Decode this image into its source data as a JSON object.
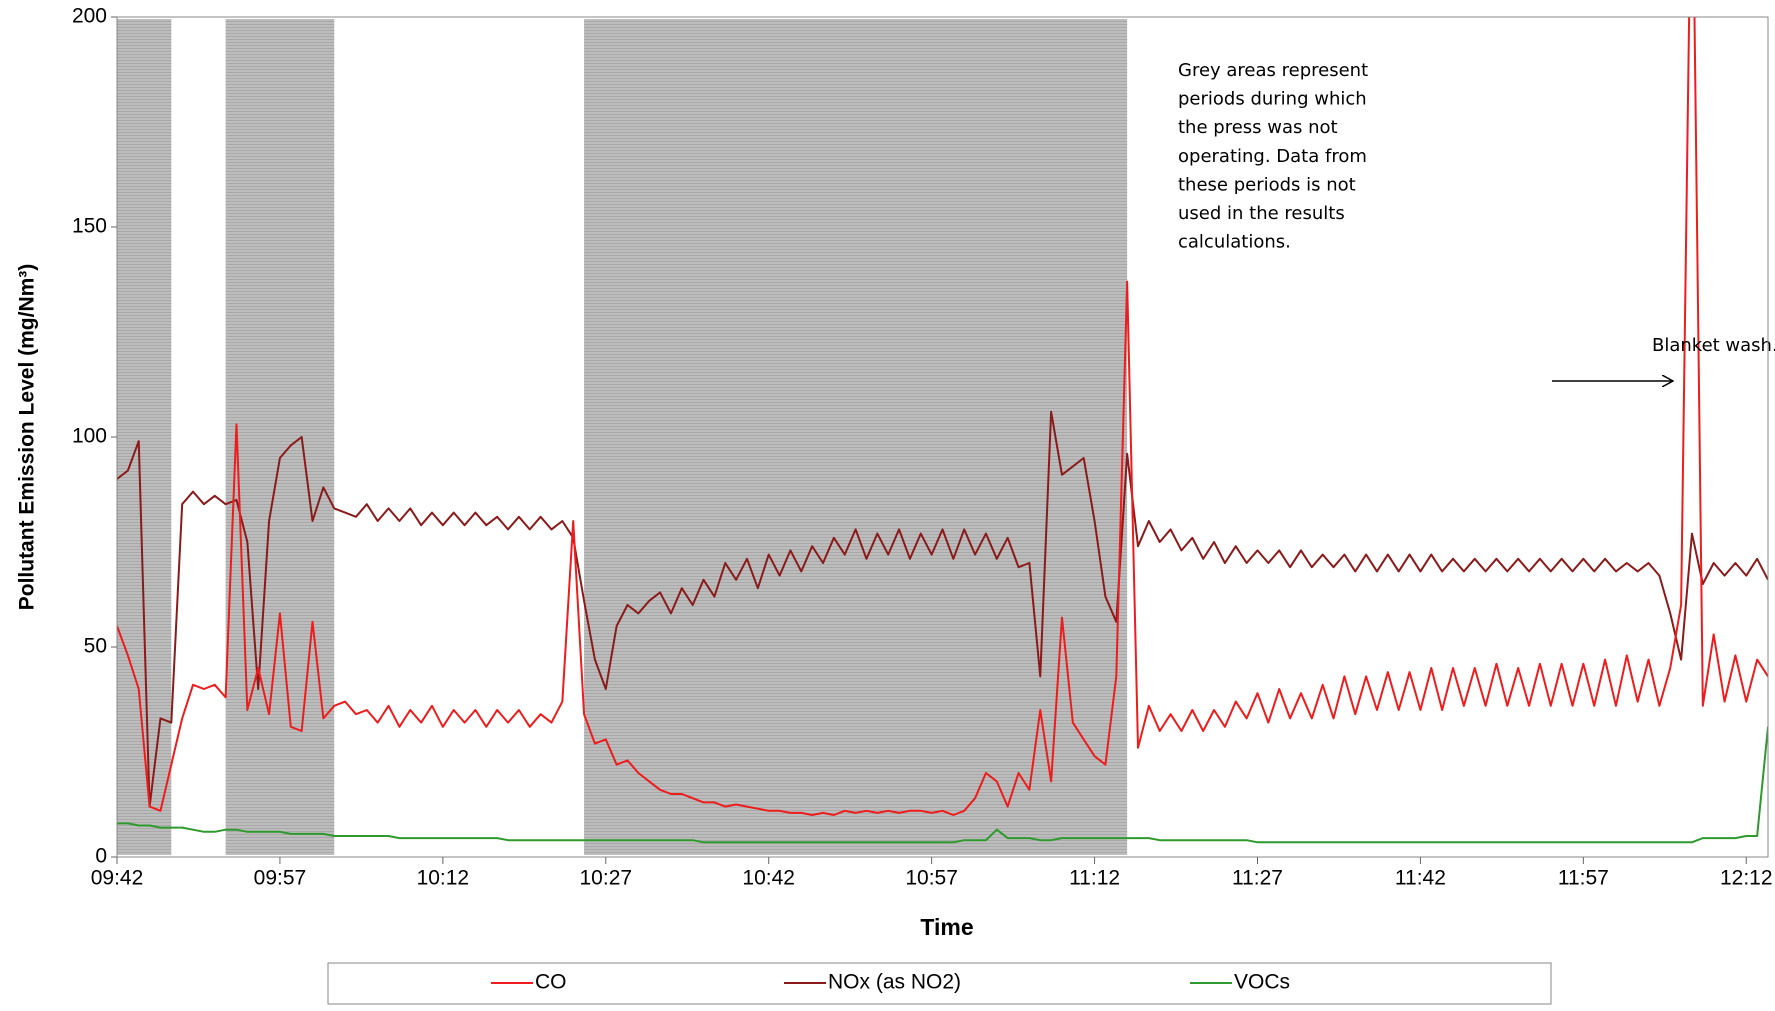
{
  "chart_data": {
    "type": "line",
    "x_label": "Time",
    "y_label": "Pollutant Emission Level (mg/Nm³)",
    "x": [
      "09:42",
      "09:43",
      "09:44",
      "09:45",
      "09:46",
      "09:47",
      "09:48",
      "09:49",
      "09:50",
      "09:51",
      "09:52",
      "09:53",
      "09:54",
      "09:55",
      "09:56",
      "09:57",
      "09:58",
      "09:59",
      "10:00",
      "10:01",
      "10:02",
      "10:03",
      "10:04",
      "10:05",
      "10:06",
      "10:07",
      "10:08",
      "10:09",
      "10:10",
      "10:11",
      "10:12",
      "10:13",
      "10:14",
      "10:15",
      "10:16",
      "10:17",
      "10:18",
      "10:19",
      "10:20",
      "10:21",
      "10:22",
      "10:23",
      "10:24",
      "10:25",
      "10:26",
      "10:27",
      "10:28",
      "10:29",
      "10:30",
      "10:31",
      "10:32",
      "10:33",
      "10:34",
      "10:35",
      "10:36",
      "10:37",
      "10:38",
      "10:39",
      "10:40",
      "10:41",
      "10:42",
      "10:43",
      "10:44",
      "10:45",
      "10:46",
      "10:47",
      "10:48",
      "10:49",
      "10:50",
      "10:51",
      "10:52",
      "10:53",
      "10:54",
      "10:55",
      "10:56",
      "10:57",
      "10:58",
      "10:59",
      "11:00",
      "11:01",
      "11:02",
      "11:03",
      "11:04",
      "11:05",
      "11:06",
      "11:07",
      "11:08",
      "11:09",
      "11:10",
      "11:11",
      "11:12",
      "11:13",
      "11:14",
      "11:15",
      "11:16",
      "11:17",
      "11:18",
      "11:19",
      "11:20",
      "11:21",
      "11:22",
      "11:23",
      "11:24",
      "11:25",
      "11:26",
      "11:27",
      "11:28",
      "11:29",
      "11:30",
      "11:31",
      "11:32",
      "11:33",
      "11:34",
      "11:35",
      "11:36",
      "11:37",
      "11:38",
      "11:39",
      "11:40",
      "11:41",
      "11:42",
      "11:43",
      "11:44",
      "11:45",
      "11:46",
      "11:47",
      "11:48",
      "11:49",
      "11:50",
      "11:51",
      "11:52",
      "11:53",
      "11:54",
      "11:55",
      "11:56",
      "11:57",
      "11:58",
      "11:59",
      "12:00",
      "12:01",
      "12:02",
      "12:03",
      "12:04",
      "12:05",
      "12:06",
      "12:07",
      "12:08",
      "12:09",
      "12:10",
      "12:11",
      "12:12",
      "12:13",
      "12:14"
    ],
    "series": [
      {
        "name": "CO",
        "color": "#ee1c1c",
        "values": [
          55,
          48,
          40,
          12,
          11,
          22,
          33,
          41,
          40,
          41,
          38,
          103,
          35,
          45,
          34,
          58,
          31,
          30,
          56,
          33,
          36,
          37,
          34,
          35,
          32,
          36,
          31,
          35,
          32,
          36,
          31,
          35,
          32,
          35,
          31,
          35,
          32,
          35,
          31,
          34,
          32,
          37,
          80,
          34,
          27,
          28,
          22,
          23,
          20,
          18,
          16,
          15,
          15,
          14,
          13,
          13,
          12,
          12.5,
          12,
          11.5,
          11,
          11,
          10.5,
          10.5,
          10,
          10.5,
          10,
          11,
          10.5,
          11,
          10.5,
          11,
          10.5,
          11,
          11,
          10.5,
          11,
          10,
          11,
          14,
          20,
          18,
          12,
          20,
          16,
          35,
          18,
          57,
          32,
          28,
          24,
          22,
          43,
          137,
          26,
          36,
          30,
          34,
          30,
          35,
          30,
          35,
          31,
          37,
          33,
          39,
          32,
          40,
          33,
          39,
          33,
          41,
          33,
          43,
          34,
          43,
          35,
          44,
          35,
          44,
          35,
          45,
          35,
          45,
          36,
          45,
          36,
          46,
          36,
          45,
          36,
          46,
          36,
          46,
          36,
          46,
          36,
          47,
          36,
          48,
          37,
          47,
          36,
          45,
          60,
          250,
          36,
          53,
          37,
          48,
          37,
          47,
          43
        ]
      },
      {
        "name": "NOx (as NO2)",
        "color": "#8b1a1a",
        "values": [
          90,
          92,
          99,
          12,
          33,
          32,
          84,
          87,
          84,
          86,
          84,
          85,
          75,
          40,
          80,
          95,
          98,
          100,
          80,
          88,
          83,
          82,
          81,
          84,
          80,
          83,
          80,
          83,
          79,
          82,
          79,
          82,
          79,
          82,
          79,
          81,
          78,
          81,
          78,
          81,
          78,
          80,
          76,
          61,
          47,
          40,
          55,
          60,
          58,
          61,
          63,
          58,
          64,
          60,
          66,
          62,
          70,
          66,
          71,
          64,
          72,
          67,
          73,
          68,
          74,
          70,
          76,
          72,
          78,
          71,
          77,
          72,
          78,
          71,
          77,
          72,
          78,
          71,
          78,
          72,
          77,
          71,
          76,
          69,
          70,
          43,
          106,
          91,
          93,
          95,
          80,
          62,
          56,
          96,
          74,
          80,
          75,
          78,
          73,
          76,
          71,
          75,
          70,
          74,
          70,
          73,
          70,
          73,
          69,
          73,
          69,
          72,
          69,
          72,
          68,
          72,
          68,
          72,
          68,
          72,
          68,
          72,
          68,
          71,
          68,
          71,
          68,
          71,
          68,
          71,
          68,
          71,
          68,
          71,
          68,
          71,
          68,
          71,
          68,
          70,
          68,
          70,
          67,
          58,
          47,
          77,
          65,
          70,
          67,
          70,
          67,
          71,
          66
        ]
      },
      {
        "name": "VOCs",
        "color": "#2e9a2e",
        "values": [
          8,
          8,
          7.5,
          7.5,
          7,
          7,
          7,
          6.5,
          6,
          6,
          6.5,
          6.5,
          6,
          6,
          6,
          6,
          5.5,
          5.5,
          5.5,
          5.5,
          5,
          5,
          5,
          5,
          5,
          5,
          4.5,
          4.5,
          4.5,
          4.5,
          4.5,
          4.5,
          4.5,
          4.5,
          4.5,
          4.5,
          4,
          4,
          4,
          4,
          4,
          4,
          4,
          4,
          4,
          4,
          4,
          4,
          4,
          4,
          4,
          4,
          4,
          4,
          3.5,
          3.5,
          3.5,
          3.5,
          3.5,
          3.5,
          3.5,
          3.5,
          3.5,
          3.5,
          3.5,
          3.5,
          3.5,
          3.5,
          3.5,
          3.5,
          3.5,
          3.5,
          3.5,
          3.5,
          3.5,
          3.5,
          3.5,
          3.5,
          4,
          4,
          4,
          6.5,
          4.5,
          4.5,
          4.5,
          4,
          4,
          4.5,
          4.5,
          4.5,
          4.5,
          4.5,
          4.5,
          4.5,
          4.5,
          4.5,
          4,
          4,
          4,
          4,
          4,
          4,
          4,
          4,
          4,
          3.5,
          3.5,
          3.5,
          3.5,
          3.5,
          3.5,
          3.5,
          3.5,
          3.5,
          3.5,
          3.5,
          3.5,
          3.5,
          3.5,
          3.5,
          3.5,
          3.5,
          3.5,
          3.5,
          3.5,
          3.5,
          3.5,
          3.5,
          3.5,
          3.5,
          3.5,
          3.5,
          3.5,
          3.5,
          3.5,
          3.5,
          3.5,
          3.5,
          3.5,
          3.5,
          3.5,
          3.5,
          3.5,
          3.5,
          3.5,
          3.5,
          4.5,
          4.5,
          4.5,
          4.5,
          5,
          5,
          31
        ]
      }
    ],
    "xlim": [
      "09:42",
      "12:14"
    ],
    "xticks": [
      "09:42",
      "09:57",
      "10:12",
      "10:27",
      "10:42",
      "10:57",
      "11:12",
      "11:27",
      "11:42",
      "11:57",
      "12:12"
    ],
    "ylim": [
      0,
      200
    ],
    "yticks": [
      0,
      50,
      100,
      150,
      200
    ],
    "shaded_periods": [
      [
        "09:42",
        "09:47"
      ],
      [
        "09:52",
        "10:02"
      ],
      [
        "10:25",
        "11:15"
      ]
    ],
    "shade_color": "#bdbdbd",
    "annotations": {
      "note": [
        "Grey areas represent",
        "periods during which",
        "the press was not",
        "operating. Data from",
        "these periods is not",
        "used in the results",
        "calculations."
      ],
      "arrow_label": "Blanket wash."
    },
    "legend": "bottom"
  }
}
